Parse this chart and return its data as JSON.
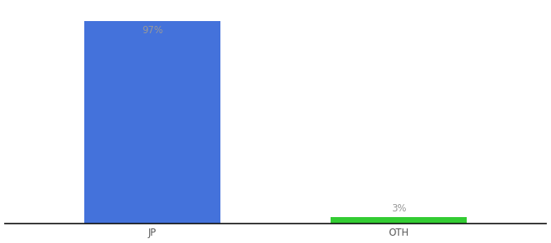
{
  "categories": [
    "JP",
    "OTH"
  ],
  "values": [
    97,
    3
  ],
  "bar_colors": [
    "#4472db",
    "#33cc33"
  ],
  "labels": [
    "97%",
    "3%"
  ],
  "ylim": [
    0,
    105
  ],
  "background_color": "#ffffff",
  "label_color": "#999999",
  "tick_color": "#555555",
  "label_fontsize": 8.5,
  "tick_fontsize": 8.5,
  "bar_width": 0.55
}
